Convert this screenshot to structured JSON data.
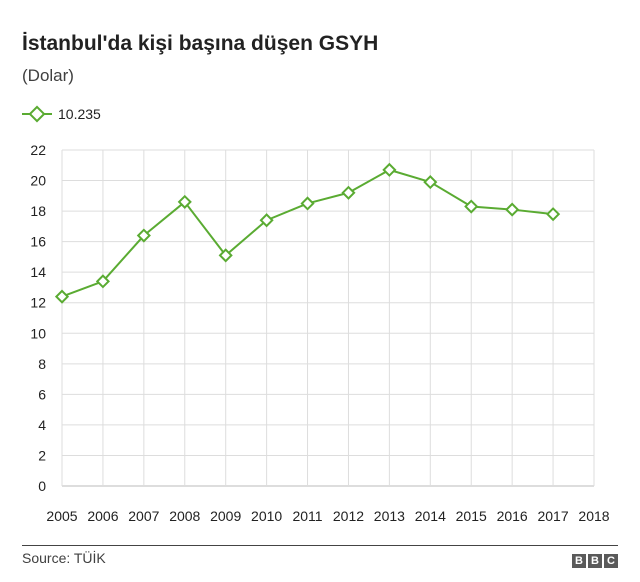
{
  "header": {
    "title": "İstanbul'da kişi başına düşen GSYH",
    "subtitle": "(Dolar)"
  },
  "footer": {
    "source": "Source: TÜİK",
    "logo_letters": [
      "B",
      "B",
      "C"
    ]
  },
  "colors": {
    "series": "#5aab32",
    "grid": "#dddddd",
    "axis_text": "#222222"
  },
  "chart_data": {
    "type": "line",
    "title": "İstanbul'da kişi başına düşen GSYH",
    "subtitle": "(Dolar)",
    "xlabel": "",
    "ylabel": "",
    "x": [
      2005,
      2006,
      2007,
      2008,
      2009,
      2010,
      2011,
      2012,
      2013,
      2014,
      2015,
      2016,
      2017
    ],
    "x_ticks": [
      "2005",
      "2006",
      "2007",
      "2008",
      "2009",
      "2010",
      "2011",
      "2012",
      "2013",
      "2014",
      "2015",
      "2016",
      "2017",
      "2018"
    ],
    "y_ticks": [
      "0",
      "2",
      "4",
      "6",
      "8",
      "10",
      "12",
      "14",
      "16",
      "18",
      "20",
      "22"
    ],
    "xlim": [
      2005,
      2018
    ],
    "ylim": [
      0,
      22
    ],
    "grid": true,
    "legend_position": "top-left",
    "marker": "diamond",
    "series": [
      {
        "name": "10.235",
        "values": [
          12.4,
          13.4,
          16.4,
          18.6,
          15.1,
          17.4,
          18.5,
          19.2,
          20.7,
          19.9,
          18.3,
          18.1,
          17.8
        ]
      }
    ]
  }
}
